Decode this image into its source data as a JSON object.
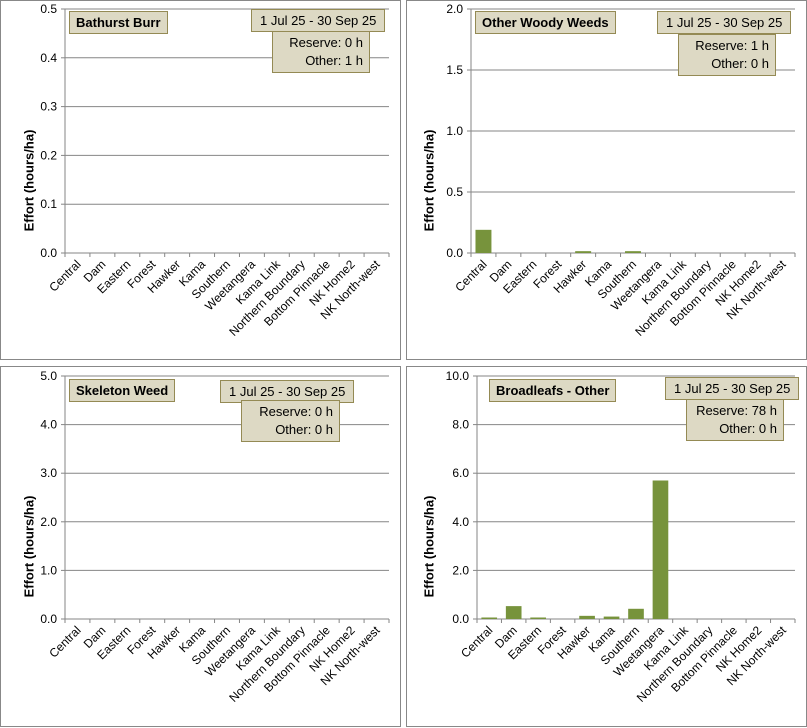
{
  "colors": {
    "bar": "#77933c",
    "grid": "#868686",
    "box_fill": "#ddd9c4",
    "box_border": "#948a54"
  },
  "chart_data": [
    {
      "type": "bar",
      "title": "Bathurst Burr",
      "date_range": "1 Jul 25  -  30 Sep 25",
      "reserve": "Reserve: 0 h",
      "other": "Other: 1 h",
      "ylabel": "Effort  (hours/ha)",
      "ylim": [
        0,
        0.5
      ],
      "yticks": [
        "0.0",
        "0.1",
        "0.2",
        "0.3",
        "0.4",
        "0.5"
      ],
      "categories": [
        "Central",
        "Dam",
        "Eastern",
        "Forest",
        "Hawker",
        "Kama",
        "Southern",
        "Weetangera",
        "Kama Link",
        "Northern Boundary",
        "Bottom Pinnacle",
        "NK Home2",
        "NK North-west"
      ],
      "values": [
        0,
        0,
        0,
        0,
        0,
        0,
        0,
        0,
        0,
        0,
        0,
        0,
        0
      ]
    },
    {
      "type": "bar",
      "title": "Other Woody Weeds",
      "date_range": "1 Jul 25  -  30 Sep 25",
      "reserve": "Reserve: 1 h",
      "other": "Other: 0 h",
      "ylabel": "Effort  (hours/ha)",
      "ylim": [
        0,
        2.0
      ],
      "yticks": [
        "0.0",
        "0.5",
        "1.0",
        "1.5",
        "2.0"
      ],
      "categories": [
        "Central",
        "Dam",
        "Eastern",
        "Forest",
        "Hawker",
        "Kama",
        "Southern",
        "Weetangera",
        "Kama Link",
        "Northern Boundary",
        "Bottom Pinnacle",
        "NK Home2",
        "NK North-west"
      ],
      "values": [
        0.19,
        0,
        0,
        0,
        0.015,
        0,
        0.015,
        0,
        0,
        0,
        0,
        0,
        0
      ]
    },
    {
      "type": "bar",
      "title": "Skeleton Weed",
      "date_range": "1 Jul 25  -  30 Sep 25",
      "reserve": "Reserve: 0 h",
      "other": "Other: 0 h",
      "ylabel": "Effort  (hours/ha)",
      "ylim": [
        0,
        5.0
      ],
      "yticks": [
        "0.0",
        "1.0",
        "2.0",
        "3.0",
        "4.0",
        "5.0"
      ],
      "categories": [
        "Central",
        "Dam",
        "Eastern",
        "Forest",
        "Hawker",
        "Kama",
        "Southern",
        "Weetangera",
        "Kama Link",
        "Northern Boundary",
        "Bottom Pinnacle",
        "NK Home2",
        "NK North-west"
      ],
      "values": [
        0,
        0,
        0,
        0,
        0,
        0,
        0,
        0,
        0,
        0,
        0,
        0,
        0
      ]
    },
    {
      "type": "bar",
      "title": "Broadleafs - Other",
      "date_range": "1 Jul 25  -  30 Sep 25",
      "reserve": "Reserve: 78 h",
      "other": "Other: 0 h",
      "ylabel": "Effort  (hours/ha)",
      "ylim": [
        0,
        10.0
      ],
      "yticks": [
        "0.0",
        "2.0",
        "4.0",
        "6.0",
        "8.0",
        "10.0"
      ],
      "categories": [
        "Central",
        "Dam",
        "Eastern",
        "Forest",
        "Hawker",
        "Kama",
        "Southern",
        "Weetangera",
        "Kama Link",
        "Northern Boundary",
        "Bottom Pinnacle",
        "NK Home2",
        "NK North-west"
      ],
      "values": [
        0.05,
        0.53,
        0.05,
        0,
        0.13,
        0.1,
        0.42,
        5.7,
        0,
        0,
        0,
        0,
        0
      ]
    }
  ]
}
